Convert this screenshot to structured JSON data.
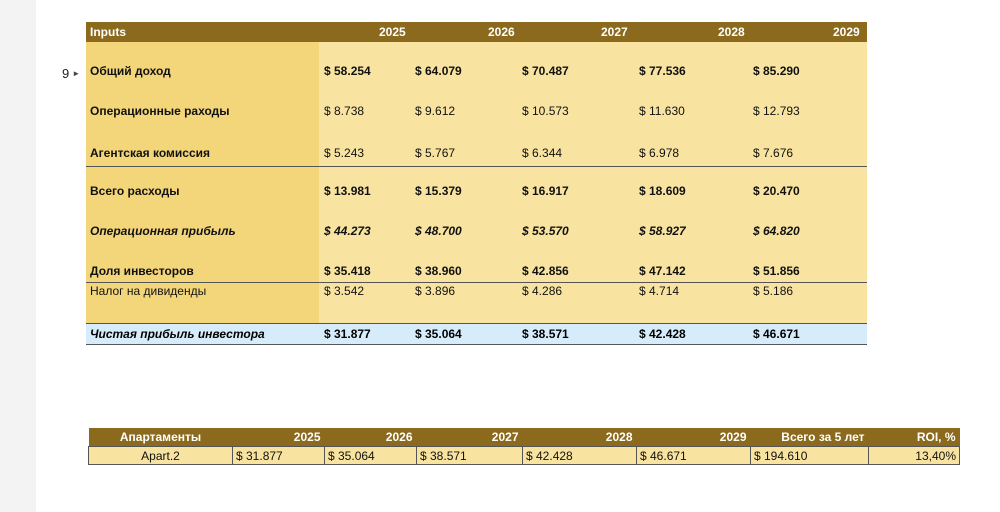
{
  "row_marker": "9",
  "main_table": {
    "header": {
      "title": "Inputs",
      "years": [
        "2025",
        "2026",
        "2027",
        "2028",
        "2029"
      ]
    },
    "rows": [
      {
        "label": "Общий доход",
        "values": [
          "$ 58.254",
          "$ 64.079",
          "$ 70.487",
          "$ 77.536",
          "$ 85.290"
        ]
      },
      {
        "label": "Операционные раходы",
        "values": [
          "$ 8.738",
          "$ 9.612",
          "$ 10.573",
          "$ 11.630",
          "$ 12.793"
        ]
      },
      {
        "label": "Агентская комиссия",
        "values": [
          "$ 5.243",
          "$ 5.767",
          "$ 6.344",
          "$ 6.978",
          "$ 7.676"
        ]
      },
      {
        "label": "Всего расходы",
        "values": [
          "$ 13.981",
          "$ 15.379",
          "$ 16.917",
          "$ 18.609",
          "$ 20.470"
        ]
      },
      {
        "label": "Операционная прибыль",
        "values": [
          "$ 44.273",
          "$ 48.700",
          "$ 53.570",
          "$ 58.927",
          "$ 64.820"
        ]
      },
      {
        "label": "Доля инвесторов",
        "values": [
          "$ 35.418",
          "$ 38.960",
          "$ 42.856",
          "$ 47.142",
          "$ 51.856"
        ]
      },
      {
        "label": "Налог на дивиденды",
        "values": [
          "$ 3.542",
          "$ 3.896",
          "$ 4.286",
          "$ 4.714",
          "$ 5.186"
        ]
      },
      {
        "label": "Чистая прибыль инвестора",
        "values": [
          "$ 31.877",
          "$ 35.064",
          "$ 38.571",
          "$ 42.428",
          "$ 46.671"
        ]
      }
    ]
  },
  "summary_table": {
    "headers": [
      "Апартаменты",
      "2025",
      "2026",
      "2027",
      "2028",
      "2029",
      "Всего за 5 лет",
      "ROI, %"
    ],
    "row": [
      "Apart.2",
      "$ 31.877",
      "$ 35.064",
      "$ 38.571",
      "$ 42.428",
      "$ 46.671",
      "$ 194.610",
      "13,40%"
    ]
  },
  "colors": {
    "header_brown": "#8b6a1d",
    "cell_yellow": "#f8e4a0",
    "label_yellow": "#f4d67a",
    "net_blue": "#d7ecfa"
  }
}
